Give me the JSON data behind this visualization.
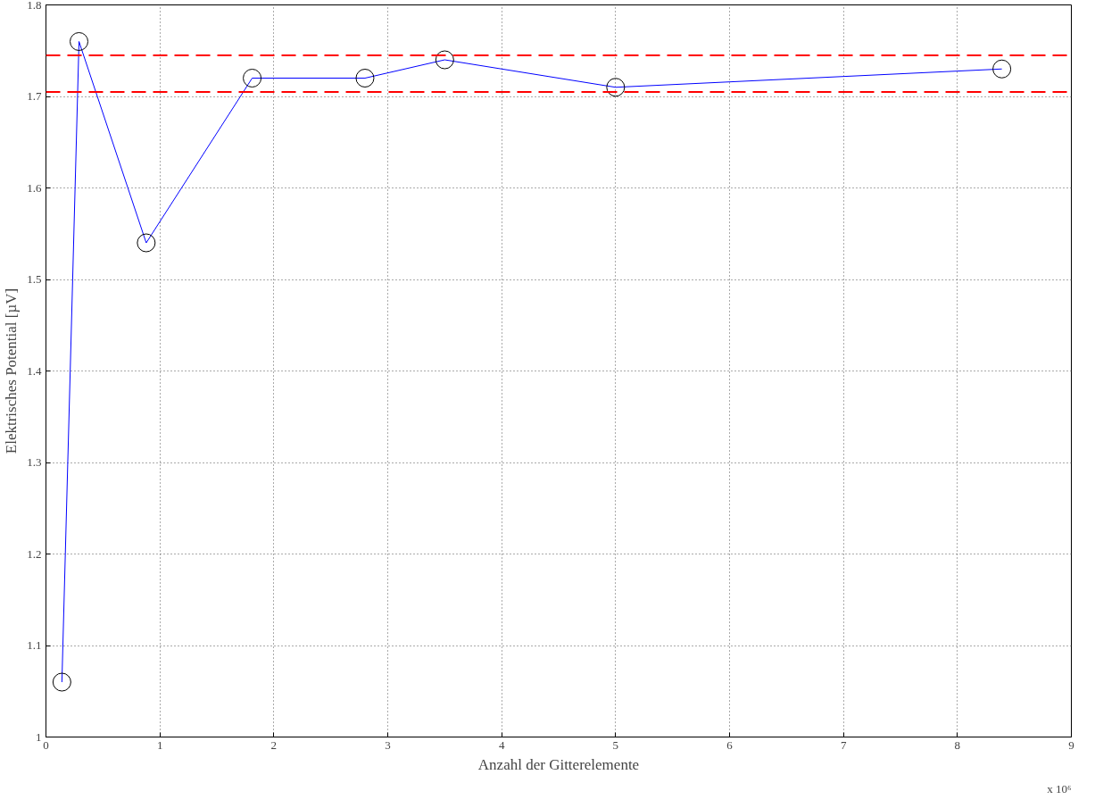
{
  "chart_data": {
    "type": "line",
    "xlabel": "Anzahl der Gitterelemente",
    "ylabel": "Elektrisches Potential [µV]",
    "x": [
      0.14,
      0.29,
      0.88,
      1.81,
      2.8,
      3.5,
      5.0,
      8.39
    ],
    "series": [
      {
        "color": "#0000ff",
        "values": [
          1.06,
          1.76,
          1.54,
          1.72,
          1.72,
          1.74,
          1.71,
          1.73
        ]
      }
    ],
    "marker": "circle",
    "line_style": "solid",
    "grid": true,
    "xlim": [
      0,
      9
    ],
    "xticks": [
      0,
      1,
      2,
      3,
      4,
      5,
      6,
      7,
      8,
      9
    ],
    "ylim": [
      1,
      1.8
    ],
    "yticks": [
      1,
      1.1,
      1.2,
      1.3,
      1.4,
      1.5,
      1.6,
      1.7,
      1.8
    ],
    "ref_lines": [
      {
        "axis": "y",
        "value": 1.745,
        "color": "#ff0000",
        "line_style": "dashed"
      },
      {
        "axis": "y",
        "value": 1.705,
        "color": "#ff0000",
        "line_style": "dashed"
      }
    ],
    "annotations": [
      "x 10⁶"
    ]
  }
}
